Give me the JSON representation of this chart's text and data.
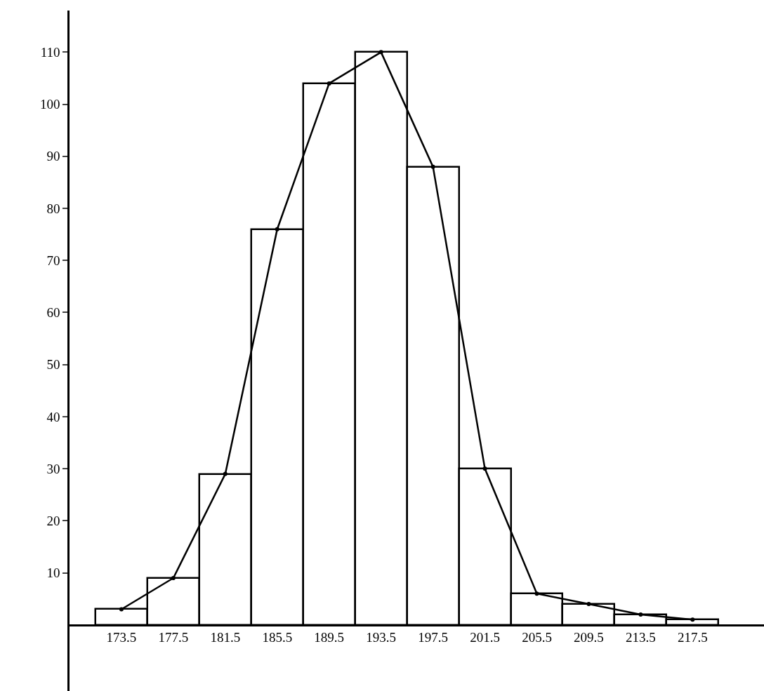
{
  "chart_data": {
    "type": "histogram",
    "bins": [
      171.5,
      175.5,
      179.5,
      183.5,
      187.5,
      191.5,
      195.5,
      199.5,
      203.5,
      207.5,
      211.5,
      215.5,
      219.5
    ],
    "values": [
      3,
      9,
      29,
      76,
      104,
      110,
      88,
      30,
      6,
      4,
      2,
      1
    ],
    "color": "#ffffff",
    "series": [
      {
        "type": "line",
        "x": [
          173.5,
          177.5,
          181.5,
          185.5,
          189.5,
          193.5,
          197.5,
          201.5,
          205.5,
          209.5,
          213.5,
          217.5
        ],
        "values": [
          3,
          9,
          29,
          76,
          104,
          110,
          88,
          30,
          6,
          4,
          2,
          1
        ],
        "color": "#000000"
      }
    ],
    "marker": "circle",
    "line_style": "solid",
    "grid": false,
    "xlim": [
      169.5,
      223
    ],
    "ylim": [
      -12.7,
      118
    ],
    "xticks": [
      173.5,
      177.5,
      181.5,
      185.5,
      189.5,
      193.5,
      197.5,
      201.5,
      205.5,
      209.5,
      213.5,
      217.5
    ],
    "yticks": [
      10,
      20,
      30,
      40,
      50,
      60,
      70,
      80,
      90,
      100,
      110
    ]
  }
}
